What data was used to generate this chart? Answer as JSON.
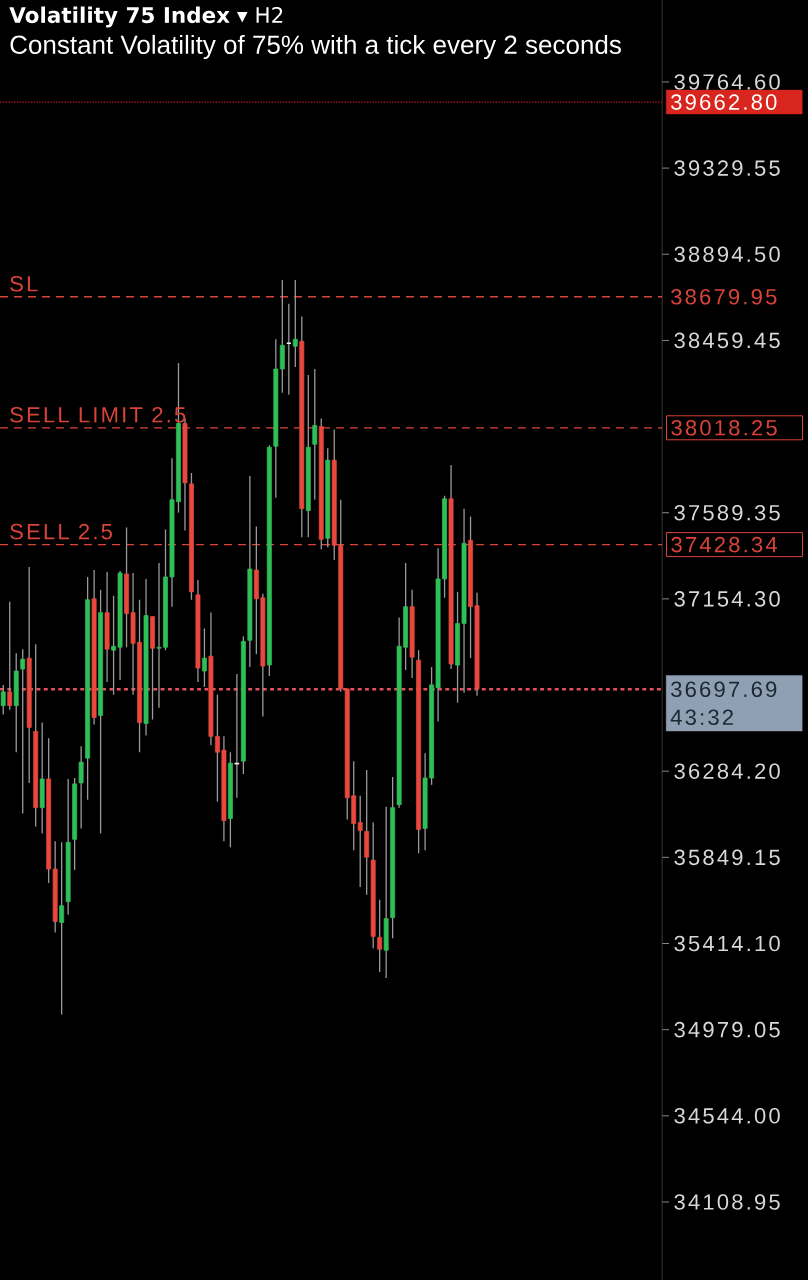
{
  "chart_data": {
    "type": "candlestick",
    "title": "**Volatility 75 Index** ▾ H2",
    "subtitle": "Constant Volatility of 75% with a tick every 2 seconds",
    "categories": [
      null,
      null,
      null,
      null,
      null,
      null,
      null,
      null,
      null,
      null,
      null,
      null,
      null,
      null,
      null,
      null,
      null,
      null,
      null,
      null,
      null,
      null,
      null,
      null,
      null,
      null,
      null,
      null,
      null,
      null,
      null,
      null,
      null,
      null,
      null,
      null,
      null,
      null,
      null,
      null,
      null,
      null,
      null,
      null,
      null,
      null,
      null,
      null,
      null,
      null,
      null,
      null,
      null,
      null,
      null,
      null,
      null,
      null,
      null,
      null,
      null,
      null,
      null,
      null,
      null,
      null,
      null,
      null,
      null,
      null,
      null,
      null,
      null,
      null,
      null,
      null,
      null,
      null,
      null,
      null,
      null,
      null,
      null,
      null,
      null,
      null,
      null,
      null,
      null,
      null,
      null,
      null,
      null,
      null,
      null,
      null,
      null,
      null,
      null,
      null,
      null,
      null
    ],
    "ohlc": [
      [
        36615,
        36720,
        36570,
        36685
      ],
      [
        36685,
        37140,
        36595,
        36615
      ],
      [
        36615,
        36880,
        36380,
        36790
      ],
      [
        36800,
        36900,
        36070,
        36850
      ],
      [
        36855,
        37315,
        36225,
        36505
      ],
      [
        36485,
        36925,
        36005,
        36100
      ],
      [
        36100,
        36530,
        35970,
        36245
      ],
      [
        36245,
        36450,
        35720,
        35790
      ],
      [
        35790,
        35930,
        35470,
        35525
      ],
      [
        35520,
        35925,
        35055,
        35605
      ],
      [
        35625,
        36245,
        35560,
        35925
      ],
      [
        35940,
        36250,
        35785,
        36220
      ],
      [
        36225,
        36410,
        35995,
        36330
      ],
      [
        36350,
        37265,
        36140,
        37150
      ],
      [
        37155,
        37300,
        36520,
        36555
      ],
      [
        36565,
        37200,
        35970,
        37085
      ],
      [
        37085,
        37290,
        36735,
        36900
      ],
      [
        36895,
        37170,
        36670,
        36915
      ],
      [
        36910,
        37295,
        36745,
        37285
      ],
      [
        37280,
        37515,
        36910,
        37080
      ],
      [
        37085,
        37285,
        36670,
        36930
      ],
      [
        36935,
        37150,
        36380,
        36530
      ],
      [
        36525,
        37255,
        36465,
        37070
      ],
      [
        37065,
        37065,
        36545,
        36905
      ],
      [
        36905,
        37335,
        36605,
        36910
      ],
      [
        36910,
        37505,
        36895,
        37265
      ],
      [
        37265,
        37865,
        37115,
        37655
      ],
      [
        37645,
        38345,
        37590,
        38040
      ],
      [
        38040,
        38065,
        37500,
        37740
      ],
      [
        37735,
        37790,
        37150,
        37190
      ],
      [
        37175,
        37250,
        36735,
        36805
      ],
      [
        36790,
        37005,
        36710,
        36855
      ],
      [
        36865,
        37085,
        36415,
        36460
      ],
      [
        36460,
        36670,
        36130,
        36380
      ],
      [
        36390,
        36460,
        35930,
        36035
      ],
      [
        36045,
        36380,
        35900,
        36325
      ],
      [
        36320,
        36775,
        36150,
        36325
      ],
      [
        36335,
        36965,
        36270,
        36940
      ],
      [
        36945,
        37775,
        36810,
        37305
      ],
      [
        37300,
        37520,
        36875,
        37155
      ],
      [
        37160,
        37180,
        36560,
        36815
      ],
      [
        36820,
        37930,
        36765,
        37920
      ],
      [
        37925,
        38465,
        37665,
        38315
      ],
      [
        38315,
        38765,
        38195,
        38435
      ],
      [
        38445,
        38645,
        38185,
        38445
      ],
      [
        38430,
        38765,
        38325,
        38465
      ],
      [
        38455,
        38580,
        37465,
        37610
      ],
      [
        37600,
        38285,
        37465,
        37920
      ],
      [
        37935,
        38315,
        37655,
        38030
      ],
      [
        38025,
        38065,
        37405,
        37455
      ],
      [
        37460,
        37915,
        37415,
        37855
      ],
      [
        37855,
        38010,
        37350,
        37425
      ],
      [
        37425,
        37655,
        36685,
        36700
      ],
      [
        36700,
        36700,
        36040,
        36150
      ],
      [
        36160,
        36335,
        35885,
        36020
      ],
      [
        36025,
        36160,
        35700,
        35985
      ],
      [
        35980,
        36290,
        35660,
        35850
      ],
      [
        35835,
        36025,
        35390,
        35450
      ],
      [
        35445,
        35635,
        35270,
        35385
      ],
      [
        35380,
        36105,
        35240,
        35540
      ],
      [
        35545,
        36255,
        35440,
        36100
      ],
      [
        36115,
        37060,
        36100,
        36915
      ],
      [
        36910,
        37335,
        36795,
        37115
      ],
      [
        37115,
        37200,
        36755,
        36860
      ],
      [
        36845,
        36895,
        35870,
        35990
      ],
      [
        35995,
        36375,
        35885,
        36250
      ],
      [
        36250,
        36810,
        36215,
        36720
      ],
      [
        36705,
        37410,
        36535,
        37255
      ],
      [
        37255,
        37675,
        37160,
        37660
      ],
      [
        37660,
        37830,
        36800,
        36825
      ],
      [
        36820,
        37190,
        36630,
        37030
      ],
      [
        37030,
        37610,
        36680,
        37435
      ],
      [
        37450,
        37570,
        36855,
        37115
      ],
      [
        37120,
        37185,
        36665,
        36700
      ],
      null,
      null,
      null,
      null,
      null,
      null,
      null,
      null,
      null,
      null,
      null,
      null,
      null,
      null,
      null,
      null,
      null,
      null,
      null,
      null,
      null,
      null,
      null,
      null,
      null,
      null,
      null,
      null
    ],
    "colors": [
      "#2fbf58",
      "#e8483e",
      "#2fbf58",
      "#2fbf58",
      "#e8483e",
      "#e8483e",
      "#2fbf58",
      "#e8483e",
      "#e8483e",
      "#2fbf58",
      "#2fbf58",
      "#2fbf58",
      "#2fbf58",
      "#2fbf58",
      "#e8483e",
      "#2fbf58",
      "#e8483e",
      "#2fbf58",
      "#2fbf58",
      "#e8483e",
      "#e8483e",
      "#e8483e",
      "#2fbf58",
      "#e8483e",
      "#2fbf58",
      "#2fbf58",
      "#2fbf58",
      "#2fbf58",
      "#e8483e",
      "#e8483e",
      "#e8483e",
      "#2fbf58",
      "#e8483e",
      "#e8483e",
      "#e8483e",
      "#2fbf58",
      "#f0f0f0",
      "#2fbf58",
      "#2fbf58",
      "#e8483e",
      "#e8483e",
      "#2fbf58",
      "#2fbf58",
      "#2fbf58",
      "#f0f0f0",
      "#2fbf58",
      "#e8483e",
      "#2fbf58",
      "#2fbf58",
      "#e8483e",
      "#2fbf58",
      "#e8483e",
      "#e8483e",
      "#e8483e",
      "#e8483e",
      "#e8483e",
      "#e8483e",
      "#e8483e",
      "#e8483e",
      "#2fbf58",
      "#2fbf58",
      "#2fbf58",
      "#2fbf58",
      "#e8483e",
      "#e8483e",
      "#2fbf58",
      "#2fbf58",
      "#2fbf58",
      "#2fbf58",
      "#e8483e",
      "#2fbf58",
      "#2fbf58",
      "#e8483e",
      "#e8483e",
      null,
      null,
      null,
      null,
      null,
      null,
      null,
      null,
      null,
      null,
      null,
      null,
      null,
      null,
      null,
      null,
      null,
      null,
      null,
      null,
      null,
      null,
      null,
      null,
      null,
      null,
      null,
      null
    ],
    "ylim": [
      33715,
      40178
    ],
    "yticks": [
      {
        "value": 39764.6,
        "label": "39764.60"
      },
      39329.55,
      {
        "value": 38894.5,
        "label": "38894.50"
      },
      38459.45,
      37589.35,
      {
        "value": 37154.3,
        "label": "37154.30"
      },
      {
        "value": 36284.2,
        "label": "36284.20"
      },
      35849.15,
      {
        "value": 35414.1,
        "label": "35414.10"
      },
      34979.05,
      {
        "value": 34544,
        "label": "34544.00"
      },
      34108.95
    ],
    "tick_labels": "y",
    "ref_lines": [
      {
        "axis": "y",
        "value": 39662.8,
        "color": "#d8261e",
        "line_style": "dotted"
      },
      {
        "axis": "y",
        "value": 38679.95,
        "label": "SL",
        "color": "#d9443a",
        "line_style": "dashed"
      },
      {
        "axis": "y",
        "value": 38018.25,
        "label": "SELL LIMIT 2.5",
        "color": "#d9443a",
        "line_style": "dashed"
      },
      {
        "axis": "y",
        "value": 37428.34,
        "label": "SELL 2.5",
        "color": "#d9443a",
        "line_style": "dashed"
      },
      {
        "axis": "y",
        "value": 36697.69,
        "color": "#e2505a",
        "line_style": "dotted"
      }
    ],
    "annotations": [
      "39662.80",
      "38679.95",
      "38018.25",
      "37428.34",
      "36697.69",
      "43:32"
    ]
  }
}
